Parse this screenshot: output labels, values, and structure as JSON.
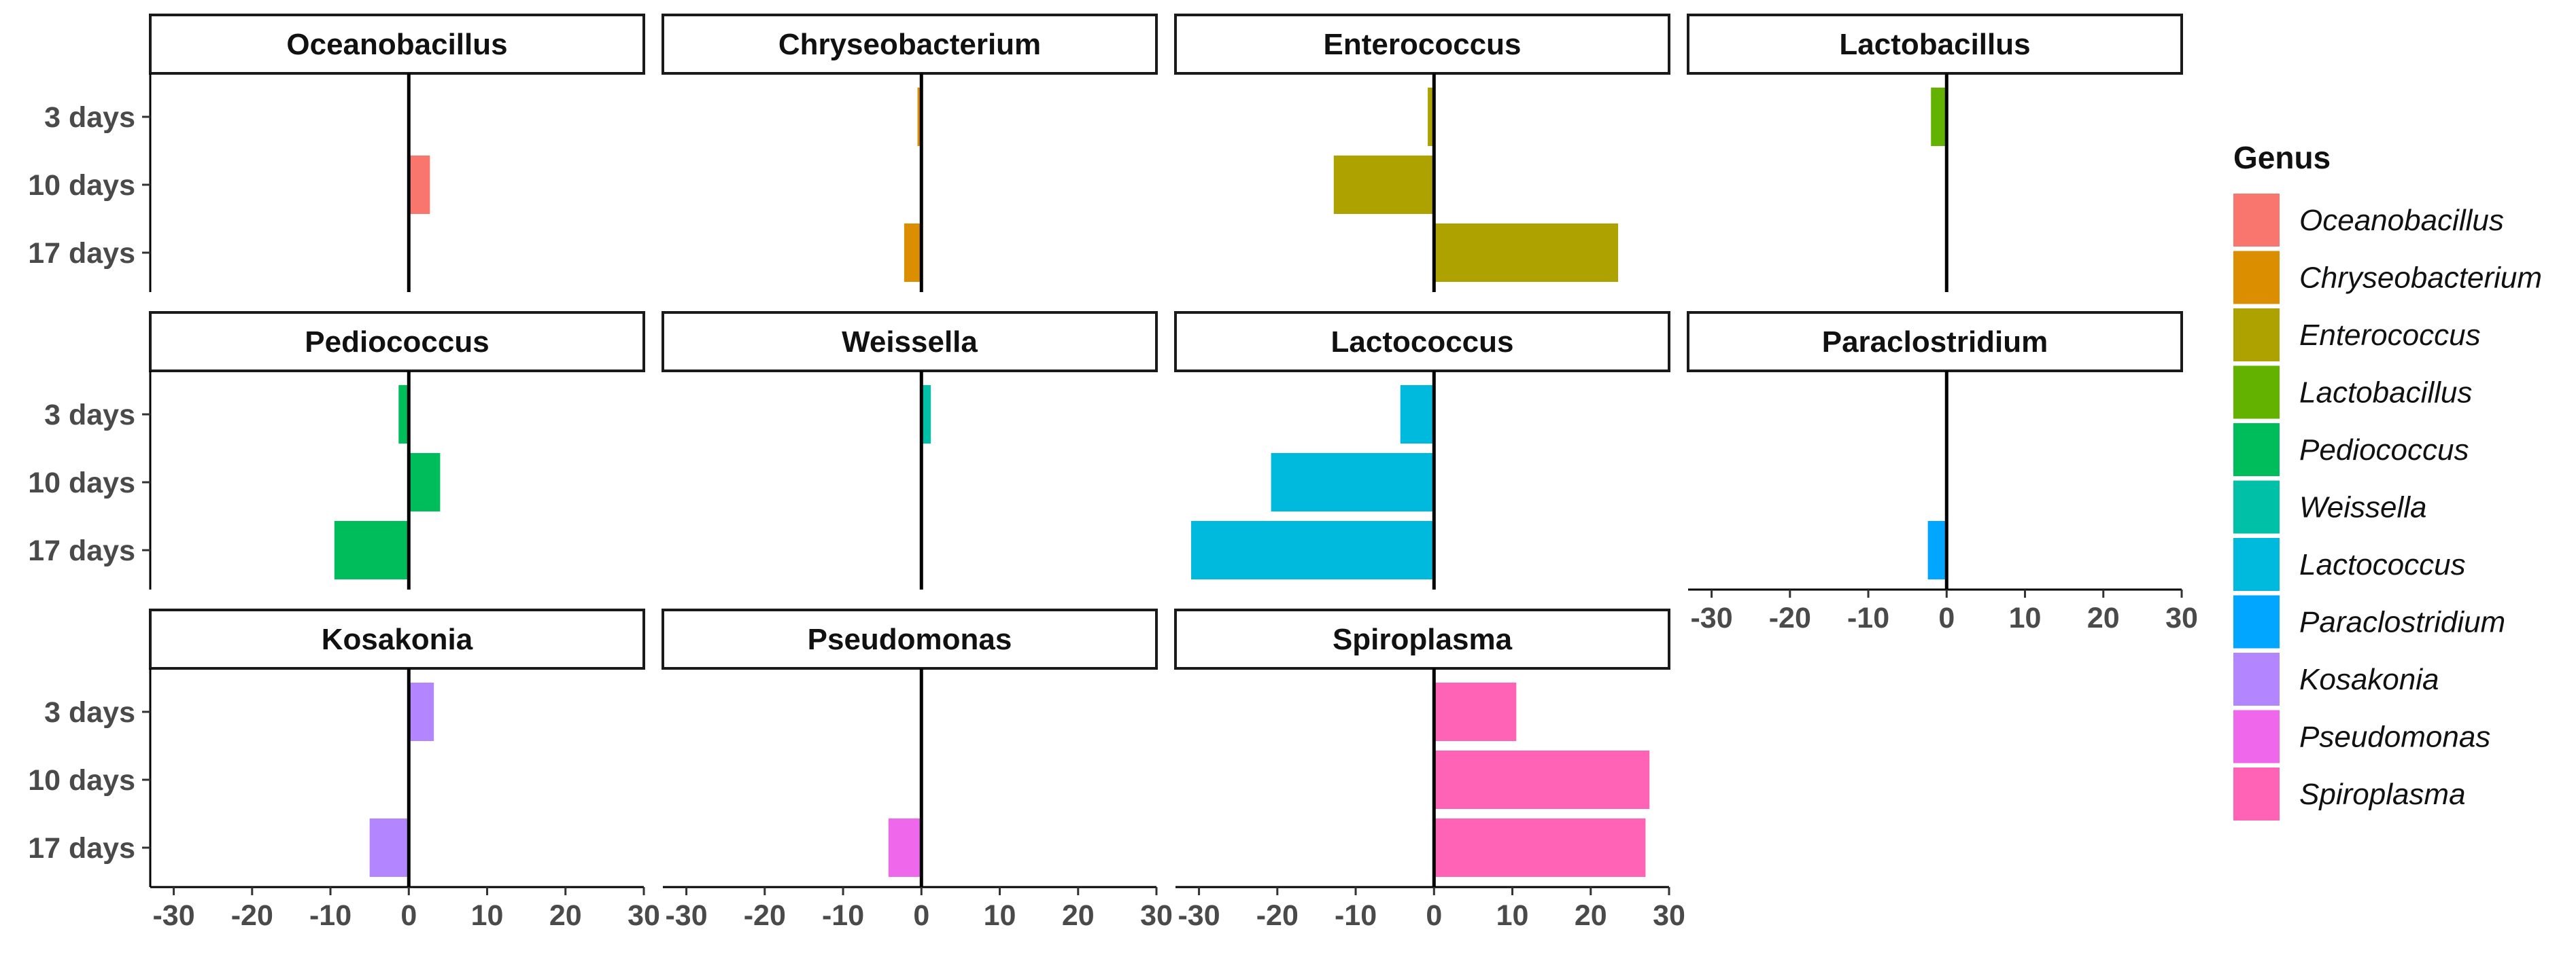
{
  "chart_data": {
    "type": "bar",
    "orientation": "horizontal",
    "categories": [
      "3 days",
      "10 days",
      "17 days"
    ],
    "xlim": [
      -33,
      30
    ],
    "xticks": [
      "-30",
      "-20",
      "-10",
      "0",
      "10",
      "20",
      "30"
    ],
    "xtick_values": [
      -30,
      -20,
      -10,
      0,
      10,
      20,
      30
    ],
    "legend_title": "Genus",
    "panels": [
      {
        "name": "Oceanobacillus",
        "color": "#F8766D",
        "values": [
          0,
          2.7,
          0
        ]
      },
      {
        "name": "Chryseobacterium",
        "color": "#DB8E00",
        "values": [
          -0.5,
          0,
          -2.2
        ]
      },
      {
        "name": "Enterococcus",
        "color": "#AEA200",
        "values": [
          -0.8,
          -12.8,
          23.5
        ]
      },
      {
        "name": "Lactobacillus",
        "color": "#64B200",
        "values": [
          -2,
          0,
          0
        ]
      },
      {
        "name": "Pediococcus",
        "color": "#00BD5C",
        "values": [
          -1.3,
          4,
          -9.5
        ]
      },
      {
        "name": "Weissella",
        "color": "#00C1A7",
        "values": [
          1.2,
          0,
          0
        ]
      },
      {
        "name": "Lactococcus",
        "color": "#00BADE",
        "values": [
          -4.3,
          -20.8,
          -31
        ]
      },
      {
        "name": "Paraclostridium",
        "color": "#00A6FF",
        "values": [
          0,
          0,
          -2.4
        ]
      },
      {
        "name": "Kosakonia",
        "color": "#B385FF",
        "values": [
          3.2,
          0,
          -5
        ]
      },
      {
        "name": "Pseudomonas",
        "color": "#EF67EB",
        "values": [
          0,
          0,
          -4.2
        ]
      },
      {
        "name": "Spiroplasma",
        "color": "#FF63B6",
        "values": [
          10.5,
          27.5,
          27
        ]
      }
    ]
  }
}
